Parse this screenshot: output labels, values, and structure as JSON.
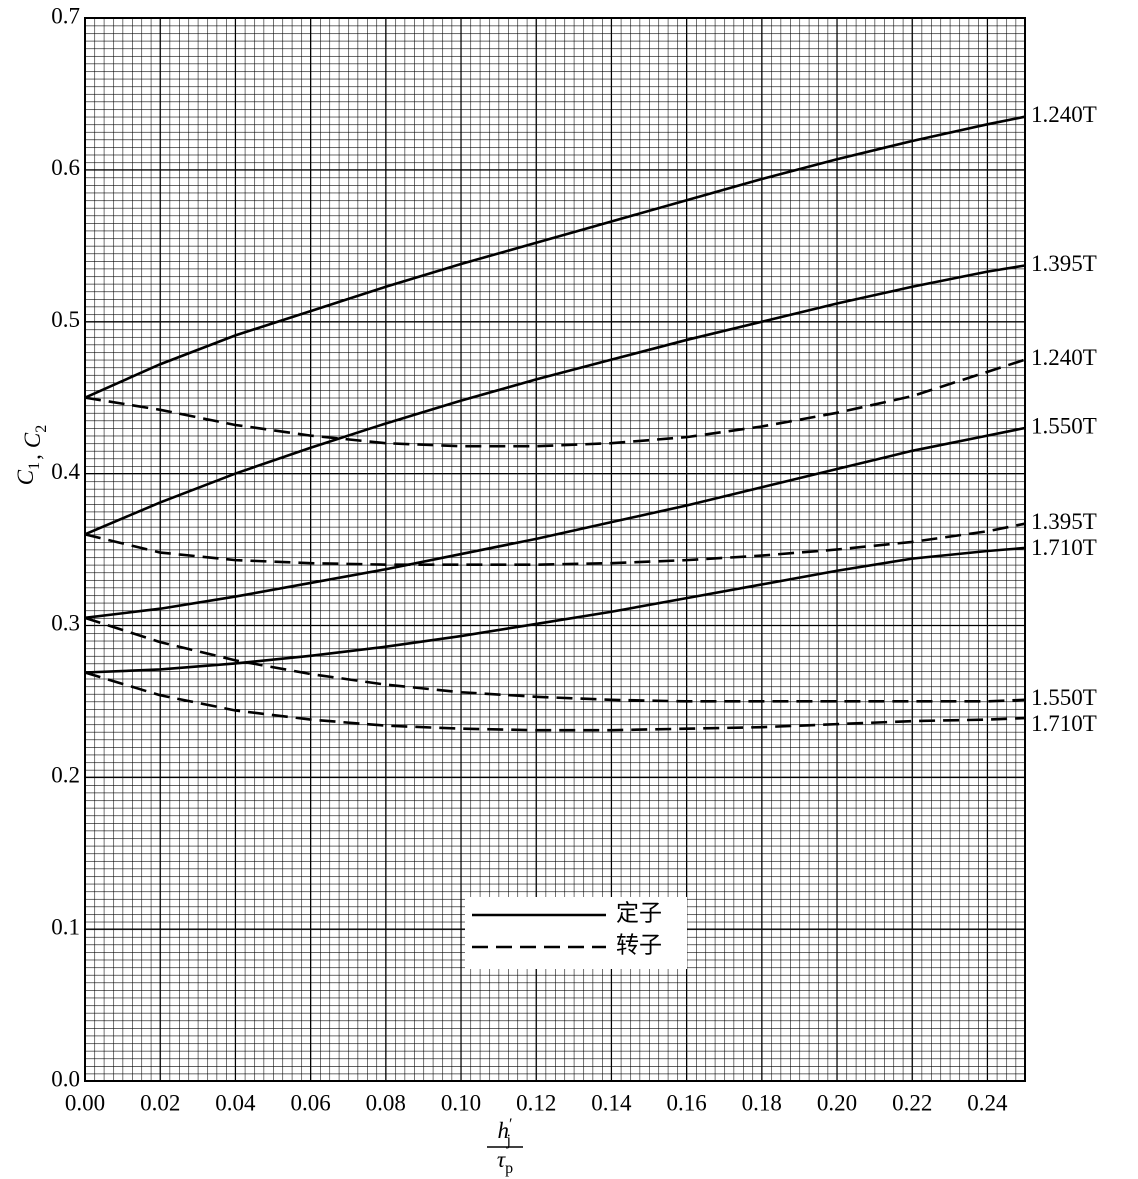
{
  "chart_data": {
    "type": "line",
    "ylabel": {
      "parts": [
        {
          "symbol": "C",
          "sub": "1"
        },
        {
          "symbol": "C",
          "sub": "2"
        }
      ],
      "separator": ","
    },
    "xlabel": {
      "numerator": {
        "symbol": "h",
        "prime": "′",
        "sub": "j"
      },
      "denominator": {
        "symbol": "τ",
        "sub": "p"
      }
    },
    "x": [
      0,
      0.02,
      0.04,
      0.06,
      0.08,
      0.1,
      0.12,
      0.14,
      0.16,
      0.18,
      0.2,
      0.22,
      0.24,
      0.25
    ],
    "xlim": [
      0,
      0.25
    ],
    "ylim": [
      0,
      0.7
    ],
    "xticks": [
      {
        "value": 0,
        "label": "0.00"
      },
      0.02,
      0.04,
      0.06,
      0.08,
      {
        "value": 0.1,
        "label": "0.10"
      },
      0.12,
      0.14,
      0.16,
      0.18,
      {
        "value": 0.2,
        "label": "0.20"
      },
      0.22,
      0.24
    ],
    "yticks": [
      {
        "value": 0,
        "label": "0.0"
      },
      0.1,
      0.2,
      0.3,
      0.4,
      0.5,
      0.6,
      0.7
    ],
    "grid": true,
    "legend": [
      {
        "label": "定子",
        "dash": "solid"
      },
      {
        "label": "转子",
        "dash": "dashed"
      }
    ],
    "series": [
      {
        "name": "1.240T",
        "dash": "solid",
        "color": "#000000",
        "values": [
          0.45,
          0.472,
          0.491,
          0.507,
          0.523,
          0.538,
          0.552,
          0.566,
          0.58,
          0.594,
          0.607,
          0.619,
          0.63,
          0.635
        ]
      },
      {
        "name": "1.395T",
        "dash": "solid",
        "color": "#000000",
        "values": [
          0.36,
          0.381,
          0.4,
          0.417,
          0.433,
          0.448,
          0.462,
          0.475,
          0.488,
          0.5,
          0.512,
          0.523,
          0.533,
          0.537
        ]
      },
      {
        "name": "1.240T",
        "dash": "dashed",
        "color": "#000000",
        "values": [
          0.45,
          0.442,
          0.432,
          0.425,
          0.42,
          0.418,
          0.418,
          0.42,
          0.424,
          0.431,
          0.44,
          0.451,
          0.467,
          0.475
        ]
      },
      {
        "name": "1.550T",
        "dash": "solid",
        "color": "#000000",
        "values": [
          0.305,
          0.311,
          0.319,
          0.328,
          0.337,
          0.347,
          0.357,
          0.368,
          0.379,
          0.391,
          0.403,
          0.415,
          0.425,
          0.43
        ]
      },
      {
        "name": "1.395T",
        "dash": "dashed",
        "color": "#000000",
        "values": [
          0.36,
          0.348,
          0.343,
          0.341,
          0.34,
          0.34,
          0.34,
          0.341,
          0.343,
          0.346,
          0.35,
          0.355,
          0.362,
          0.367
        ]
      },
      {
        "name": "1.710T",
        "dash": "solid",
        "color": "#000000",
        "values": [
          0.269,
          0.271,
          0.275,
          0.28,
          0.286,
          0.293,
          0.301,
          0.309,
          0.318,
          0.327,
          0.336,
          0.344,
          0.349,
          0.351
        ]
      },
      {
        "name": "1.550T",
        "dash": "dashed",
        "color": "#000000",
        "values": [
          0.305,
          0.289,
          0.277,
          0.268,
          0.261,
          0.256,
          0.253,
          0.251,
          0.25,
          0.25,
          0.25,
          0.25,
          0.25,
          0.251
        ]
      },
      {
        "name": "1.710T",
        "dash": "dashed",
        "color": "#000000",
        "values": [
          0.269,
          0.254,
          0.244,
          0.238,
          0.234,
          0.232,
          0.231,
          0.231,
          0.232,
          0.233,
          0.235,
          0.237,
          0.238,
          0.239
        ]
      }
    ]
  }
}
